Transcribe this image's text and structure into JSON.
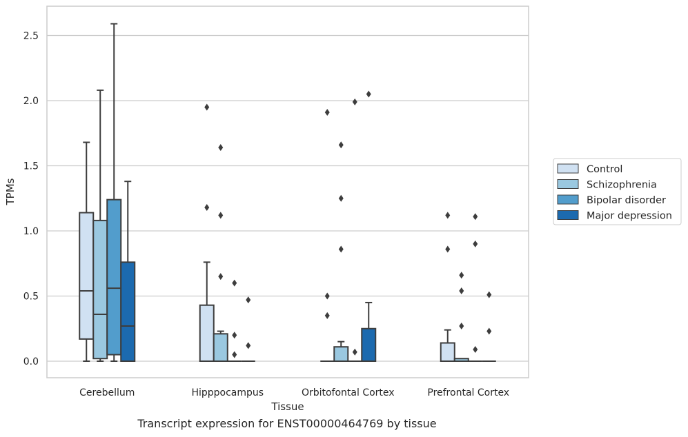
{
  "chart_data": {
    "type": "box",
    "xlabel": "Tissue",
    "ylabel": "TPMs",
    "ylim": [
      -0.125,
      2.725
    ],
    "yticks": [
      "0.0",
      "0.5",
      "1.0",
      "1.5",
      "2.0",
      "2.5"
    ],
    "grid": true,
    "legend_position": "right",
    "categories": [
      "Cerebellum",
      "Hipppocampus",
      "Orbitofontal Cortex",
      "Prefrontal Cortex"
    ],
    "series": [
      {
        "name": "Control",
        "color": "#d0e1f2",
        "boxes": [
          {
            "whislo": 0.0,
            "q1": 0.17,
            "med": 0.54,
            "q3": 1.14,
            "whishi": 1.68,
            "fliers": []
          },
          {
            "whislo": 0.0,
            "q1": 0.0,
            "med": 0.0,
            "q3": 0.43,
            "whishi": 0.76,
            "fliers": [
              1.18,
              1.95
            ]
          },
          {
            "whislo": 0.0,
            "q1": 0.0,
            "med": 0.0,
            "q3": 0.0,
            "whishi": 0.0,
            "fliers": [
              0.35,
              0.5,
              1.91
            ]
          },
          {
            "whislo": 0.0,
            "q1": 0.0,
            "med": 0.0,
            "q3": 0.14,
            "whishi": 0.24,
            "fliers": [
              0.86,
              1.12
            ]
          }
        ]
      },
      {
        "name": "Schizophrenia",
        "color": "#9ac8e0",
        "boxes": [
          {
            "whislo": 0.0,
            "q1": 0.02,
            "med": 0.36,
            "q3": 1.08,
            "whishi": 2.08,
            "fliers": []
          },
          {
            "whislo": 0.0,
            "q1": 0.0,
            "med": 0.0,
            "q3": 0.21,
            "whishi": 0.23,
            "fliers": [
              0.65,
              1.12,
              1.64
            ]
          },
          {
            "whislo": 0.0,
            "q1": 0.0,
            "med": 0.0,
            "q3": 0.11,
            "whishi": 0.15,
            "fliers": [
              0.86,
              1.25,
              1.66
            ]
          },
          {
            "whislo": 0.0,
            "q1": 0.0,
            "med": 0.0,
            "q3": 0.02,
            "whishi": 0.02,
            "fliers": [
              0.27,
              0.54,
              0.66
            ]
          }
        ]
      },
      {
        "name": "Bipolar disorder",
        "color": "#529dcc",
        "boxes": [
          {
            "whislo": 0.0,
            "q1": 0.05,
            "med": 0.56,
            "q3": 1.24,
            "whishi": 2.59,
            "fliers": []
          },
          {
            "whislo": 0.0,
            "q1": 0.0,
            "med": 0.0,
            "q3": 0.0,
            "whishi": 0.0,
            "fliers": [
              0.05,
              0.2,
              0.6
            ]
          },
          {
            "whislo": 0.0,
            "q1": 0.0,
            "med": 0.0,
            "q3": 0.0,
            "whishi": 0.0,
            "fliers": [
              0.07,
              1.99
            ]
          },
          {
            "whislo": 0.0,
            "q1": 0.0,
            "med": 0.0,
            "q3": 0.0,
            "whishi": 0.0,
            "fliers": [
              0.09,
              0.9,
              1.11
            ]
          }
        ]
      },
      {
        "name": "Major depression",
        "color": "#1c6aaf",
        "boxes": [
          {
            "whislo": 0.0,
            "q1": 0.0,
            "med": 0.27,
            "q3": 0.76,
            "whishi": 1.38,
            "fliers": []
          },
          {
            "whislo": 0.0,
            "q1": 0.0,
            "med": 0.0,
            "q3": 0.0,
            "whishi": 0.0,
            "fliers": [
              0.12,
              0.47
            ]
          },
          {
            "whislo": 0.0,
            "q1": 0.0,
            "med": 0.0,
            "q3": 0.25,
            "whishi": 0.45,
            "fliers": [
              2.05
            ]
          },
          {
            "whislo": 0.0,
            "q1": 0.0,
            "med": 0.0,
            "q3": 0.0,
            "whishi": 0.0,
            "fliers": [
              0.23,
              0.51
            ]
          }
        ]
      }
    ]
  },
  "caption": "Transcript expression for ENST00000464769 by tissue",
  "colors": {
    "grid": "#cccccc",
    "frame": "#cccccc",
    "line": "#3d3d3d"
  }
}
